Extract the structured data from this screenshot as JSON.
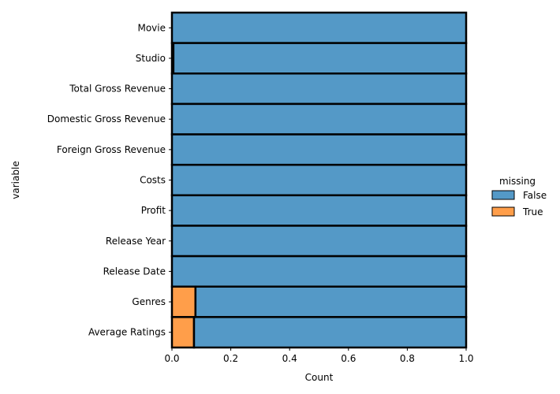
{
  "chart_data": {
    "type": "bar",
    "orientation": "horizontal",
    "stacked": true,
    "categories": [
      "Movie",
      "Studio",
      "Total Gross Revenue",
      "Domestic Gross Revenue",
      "Foreign Gross Revenue",
      "Costs",
      "Profit",
      "Release Year",
      "Release Date",
      "Genres",
      "Average Ratings"
    ],
    "series": [
      {
        "name": "True",
        "color": "#ff9e4a",
        "values": [
          0.0,
          0.005,
          0.0,
          0.0,
          0.0,
          0.0,
          0.0,
          0.0,
          0.0,
          0.08,
          0.075
        ]
      },
      {
        "name": "False",
        "color": "#5499c7",
        "values": [
          1.0,
          0.995,
          1.0,
          1.0,
          1.0,
          1.0,
          1.0,
          1.0,
          1.0,
          0.92,
          0.925
        ]
      }
    ],
    "xlabel": "Count",
    "ylabel": "variable",
    "xlim": [
      0,
      1.0
    ],
    "xticks": [
      "0.0",
      "0.2",
      "0.4",
      "0.6",
      "0.8",
      "1.0"
    ],
    "grid": false,
    "legend": {
      "title": "missing",
      "placement": "right",
      "entries": [
        "False",
        "True"
      ]
    }
  }
}
